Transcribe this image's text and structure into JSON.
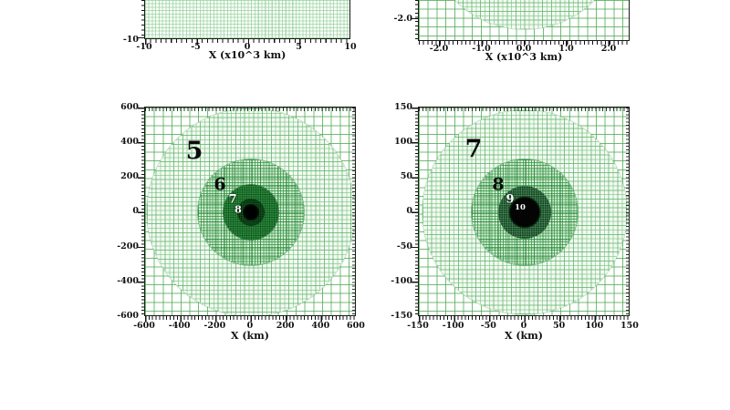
{
  "figure": {
    "description": "Four-panel figure of nested circular adaptive-mesh-refinement (AMR) grid levels; top two panels cropped by viewport",
    "colors": {
      "background": "#ffffff",
      "grid_light_green": "#96d29b",
      "grid_coarse_green": "#50aa55",
      "level6_fill": "#9fd3a5",
      "level7_fill": "#2f9240",
      "level8_fill": "#11591f",
      "level9_fill": "#123f1e",
      "core_black": "#040404",
      "axis": "#1a1a1a"
    },
    "panels": {
      "top_left": {
        "x_title": "X (x10^3 km)",
        "x_ticks": [
          "-10",
          "-5",
          "0",
          "5",
          "10"
        ],
        "y_ticks": [
          "-10"
        ]
      },
      "top_right": {
        "x_title": "X (x10^3 km)",
        "x_ticks": [
          "-2.0",
          "-1.0",
          "0.0",
          "1.0",
          "2.0"
        ],
        "y_ticks": [
          "-2.0"
        ]
      },
      "bottom_left": {
        "x_title": "X (km)",
        "x_ticks": [
          "-600",
          "-400",
          "-200",
          "0",
          "200",
          "400",
          "600"
        ],
        "y_ticks": [
          "600",
          "400",
          "200",
          "0",
          "-200",
          "-400",
          "-600"
        ],
        "level_labels": [
          {
            "text": "5",
            "style": "large black"
          },
          {
            "text": "6",
            "style": "medium black"
          },
          {
            "text": "7",
            "style": "small white"
          },
          {
            "text": "8",
            "style": "small white"
          }
        ]
      },
      "bottom_right": {
        "x_title": "X (km)",
        "x_ticks": [
          "-150",
          "-100",
          "-50",
          "0",
          "50",
          "100",
          "150"
        ],
        "y_ticks": [
          "150",
          "100",
          "50",
          "0",
          "-50",
          "-100",
          "-150"
        ],
        "level_labels": [
          {
            "text": "7",
            "style": "large black"
          },
          {
            "text": "8",
            "style": "medium black"
          },
          {
            "text": "9",
            "style": "small white"
          },
          {
            "text": "10",
            "style": "tiny white"
          }
        ]
      }
    }
  },
  "chart_data": [
    {
      "type": "heatmap",
      "panel": "top-left (cropped, bottom edge visible)",
      "xlabel": "X (x10^3 km)",
      "x_ticks": [
        -10,
        -5,
        0,
        5,
        10
      ],
      "xlim": [
        -10,
        10
      ],
      "visible_y_ticks": [
        -10
      ],
      "content": "uniform fine light-green AMR grid filling visible strip"
    },
    {
      "type": "heatmap",
      "panel": "top-right (cropped, bottom edge visible)",
      "xlabel": "X (x10^3 km)",
      "x_ticks": [
        -2.0,
        -1.0,
        0.0,
        1.0,
        2.0
      ],
      "xlim": [
        -2.5,
        2.5
      ],
      "visible_y_ticks": [
        -2.0
      ],
      "content": "coarse grid with circular finer-grid refinement region centered at origin, radius ~2.3 (x10^3 km)"
    },
    {
      "type": "heatmap",
      "panel": "bottom-left",
      "xlabel": "X (km)",
      "x_ticks": [
        -600,
        -400,
        -200,
        0,
        200,
        400,
        600
      ],
      "y_ticks": [
        600,
        400,
        200,
        0,
        -200,
        -400,
        -600
      ],
      "xlim": [
        -600,
        600
      ],
      "ylim": [
        -600,
        600
      ],
      "grid": true,
      "levels": [
        {
          "level": 5,
          "radius_km": 590,
          "appearance": "fine light-green grid"
        },
        {
          "level": 6,
          "radius_km": 300,
          "appearance": "medium green grid"
        },
        {
          "level": 7,
          "radius_km": 155,
          "appearance": "dark green dense grid"
        },
        {
          "level": 8,
          "radius_km": 78,
          "appearance": "very dark green dense grid"
        }
      ],
      "core_radius_km": 45,
      "content": "nested circular AMR refinement levels centered at origin with black core"
    },
    {
      "type": "heatmap",
      "panel": "bottom-right",
      "xlabel": "X (km)",
      "x_ticks": [
        -150,
        -100,
        -50,
        0,
        50,
        100,
        150
      ],
      "y_ticks": [
        150,
        100,
        50,
        0,
        -50,
        -100,
        -150
      ],
      "xlim": [
        -150,
        150
      ],
      "ylim": [
        -150,
        150
      ],
      "grid": true,
      "levels": [
        {
          "level": 7,
          "radius_km": 145,
          "appearance": "fine light-green grid"
        },
        {
          "level": 8,
          "radius_km": 75,
          "appearance": "medium green grid"
        },
        {
          "level": 9,
          "radius_km": 37,
          "appearance": "very dark green dense grid"
        },
        {
          "level": 10,
          "radius_km": 21,
          "appearance": "solid black disk"
        }
      ],
      "content": "nested circular AMR refinement levels centered at origin, zoom-in of bottom-left panel"
    }
  ]
}
